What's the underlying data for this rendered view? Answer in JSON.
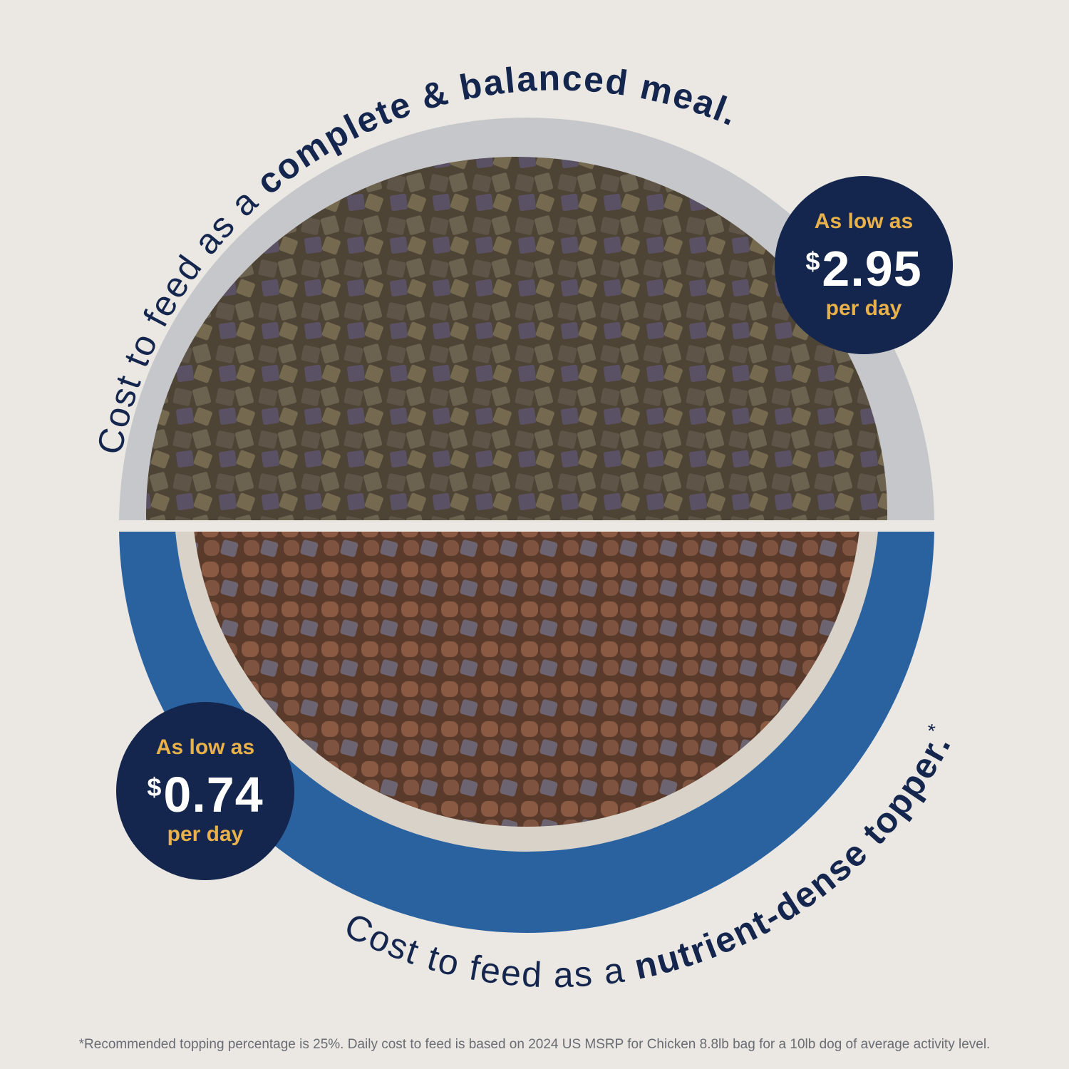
{
  "top_section": {
    "headline_regular": "Cost to feed as a ",
    "headline_bold": "complete & balanced meal.",
    "badge": {
      "prefix": "As low as",
      "currency": "$",
      "price": "2.95",
      "suffix": "per day"
    }
  },
  "bottom_section": {
    "headline_regular": "Cost to feed as a ",
    "headline_bold": "nutrient-dense topper.",
    "asterisk": "*",
    "badge": {
      "prefix": "As low as",
      "currency": "$",
      "price": "0.74",
      "suffix": "per day"
    }
  },
  "footnote": "*Recommended topping percentage is 25%. Daily cost to feed is based on 2024 US MSRP for Chicken 8.8lb bag for a 10lb dog of average activity level.",
  "colors": {
    "navy": "#14264d",
    "gold": "#e8b14a",
    "blue_bowl": "#2a62a0",
    "background": "#ebe8e4"
  }
}
